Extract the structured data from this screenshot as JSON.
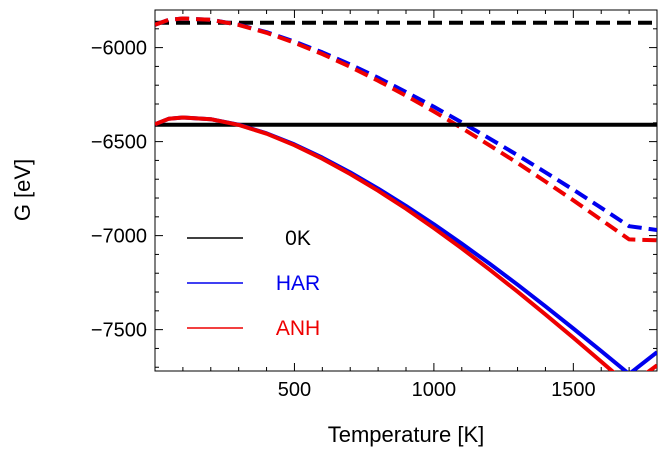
{
  "chart_data": {
    "type": "line",
    "xlabel": "Temperature  [K]",
    "ylabel": "G  [eV]",
    "xlim": [
      0,
      1800
    ],
    "ylim": [
      -7720,
      -5800
    ],
    "x_ticks": [
      500,
      1000,
      1500
    ],
    "y_ticks": [
      -7500,
      -7000,
      -6500,
      -6000
    ],
    "x_tick_labels": [
      "500",
      "1000",
      "1500"
    ],
    "y_tick_labels": [
      "−7500",
      "−7000",
      "−6500",
      "−6000"
    ],
    "grid": false,
    "legend_position": "lower-left",
    "legend": [
      {
        "label": "0K",
        "color": "#000000"
      },
      {
        "label": "HAR",
        "color": "#0000ee"
      },
      {
        "label": "ANH",
        "color": "#ee0000"
      }
    ],
    "series": [
      {
        "group": "0K",
        "style": "dashed",
        "color": "#000000",
        "x": [
          0,
          1800
        ],
        "y": [
          -5868,
          -5868
        ]
      },
      {
        "group": "HAR",
        "style": "dashed",
        "color": "#0000ee",
        "x": [
          0,
          50,
          100,
          200,
          300,
          400,
          500,
          600,
          700,
          800,
          900,
          1000,
          1100,
          1200,
          1300,
          1400,
          1500,
          1600,
          1700,
          1800
        ],
        "y": [
          -5878,
          -5852,
          -5845,
          -5852,
          -5878,
          -5918,
          -5968,
          -6025,
          -6090,
          -6160,
          -6236,
          -6315,
          -6398,
          -6484,
          -6572,
          -6663,
          -6756,
          -6852,
          -6950,
          -6970
        ]
      },
      {
        "group": "ANH",
        "style": "dashed",
        "color": "#ee0000",
        "x": [
          0,
          50,
          100,
          200,
          300,
          400,
          500,
          600,
          700,
          800,
          900,
          1000,
          1100,
          1200,
          1300,
          1400,
          1500,
          1600,
          1700,
          1800
        ],
        "y": [
          -5878,
          -5852,
          -5845,
          -5852,
          -5879,
          -5921,
          -5974,
          -6034,
          -6102,
          -6176,
          -6256,
          -6340,
          -6428,
          -6520,
          -6614,
          -6712,
          -6812,
          -6916,
          -7020,
          -7025
        ]
      },
      {
        "group": "0K",
        "style": "solid",
        "color": "#000000",
        "x": [
          0,
          1800
        ],
        "y": [
          -6410,
          -6410
        ]
      },
      {
        "group": "HAR",
        "style": "solid",
        "color": "#0000ee",
        "x": [
          0,
          50,
          100,
          200,
          300,
          400,
          500,
          600,
          700,
          800,
          900,
          1000,
          1100,
          1200,
          1300,
          1400,
          1500,
          1600,
          1700,
          1800
        ],
        "y": [
          -6408,
          -6378,
          -6372,
          -6381,
          -6410,
          -6456,
          -6515,
          -6585,
          -6664,
          -6750,
          -6842,
          -6940,
          -7043,
          -7150,
          -7261,
          -7376,
          -7494,
          -7614,
          -7736,
          -7620
        ]
      },
      {
        "group": "ANH",
        "style": "solid",
        "color": "#ee0000",
        "x": [
          0,
          50,
          100,
          200,
          300,
          400,
          500,
          600,
          700,
          800,
          900,
          1000,
          1100,
          1200,
          1300,
          1400,
          1500,
          1600,
          1700,
          1800
        ],
        "y": [
          -6408,
          -6378,
          -6372,
          -6381,
          -6411,
          -6458,
          -6519,
          -6591,
          -6672,
          -6761,
          -6857,
          -6960,
          -7068,
          -7181,
          -7298,
          -7419,
          -7543,
          -7670,
          -7798,
          -7690
        ]
      }
    ]
  }
}
